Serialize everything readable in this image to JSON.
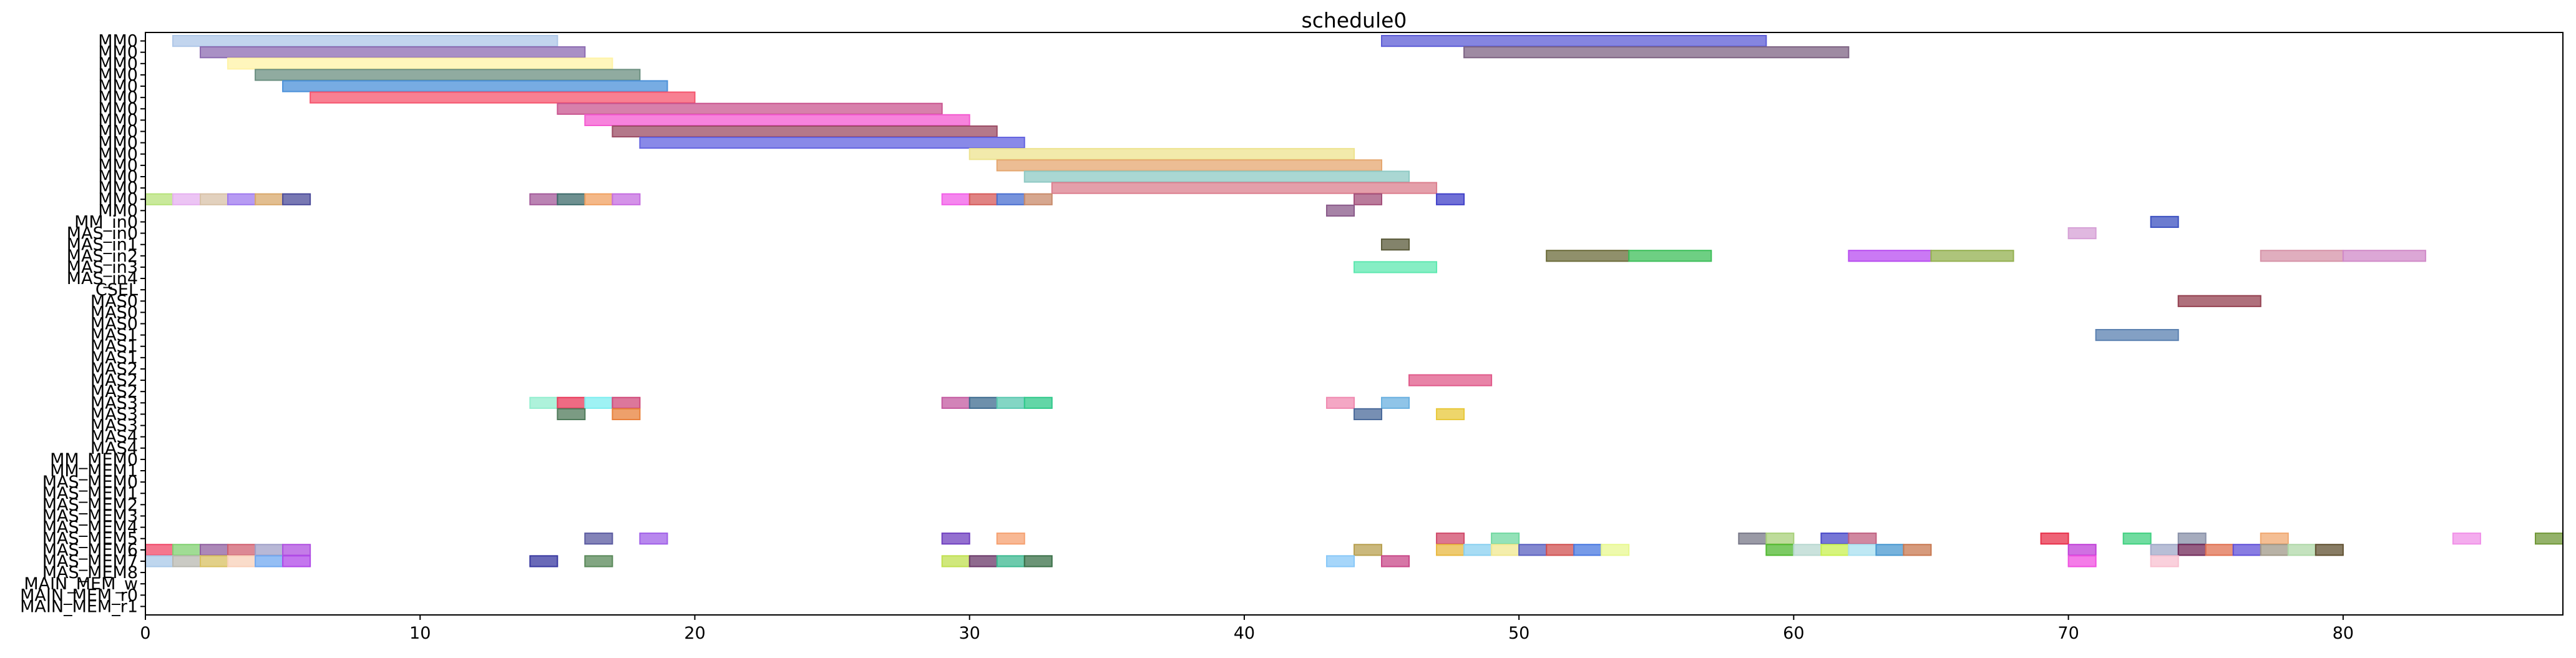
{
  "chart_data": {
    "type": "gantt",
    "title": "schedule0",
    "xlim": [
      0,
      88
    ],
    "x_ticks": [
      0,
      10,
      20,
      30,
      40,
      50,
      60,
      70,
      80
    ],
    "grid": false,
    "legend": "none",
    "rows": [
      "MM0",
      "MM0",
      "MM0",
      "MM0",
      "MM0",
      "MM0",
      "MM0",
      "MM0",
      "MM0",
      "MM0",
      "MM0",
      "MM0",
      "MM0",
      "MM0",
      "MM0",
      "MM0",
      "MM_in0",
      "MAS_in0",
      "MAS_in1",
      "MAS_in2",
      "MAS_in3",
      "MAS_in4",
      "CSEL",
      "MAS0",
      "MAS0",
      "MAS0",
      "MAS1",
      "MAS1",
      "MAS1",
      "MAS2",
      "MAS2",
      "MAS2",
      "MAS3",
      "MAS3",
      "MAS3",
      "MAS4",
      "MAS4",
      "MM_MEM0",
      "MM_MEM1",
      "MAS_MEM0",
      "MAS_MEM1",
      "MAS_MEM2",
      "MAS_MEM3",
      "MAS_MEM4",
      "MAS_MEM5",
      "MAS_MEM6",
      "MAS_MEM7",
      "MAS_MEM8",
      "MAIN_MEM_w",
      "MAIN_MEM_r0",
      "MAIN_MEM_r1"
    ],
    "tasks": [
      {
        "row": 0,
        "start": 1,
        "end": 15,
        "color": "#aec7e8"
      },
      {
        "row": 0,
        "start": 45,
        "end": 59,
        "color": "#5c5cd6"
      },
      {
        "row": 1,
        "start": 2,
        "end": 16,
        "color": "#8c6bb1"
      },
      {
        "row": 1,
        "start": 48,
        "end": 62,
        "color": "#7d6383"
      },
      {
        "row": 2,
        "start": 3,
        "end": 17,
        "color": "#fff3a6"
      },
      {
        "row": 3,
        "start": 4,
        "end": 18,
        "color": "#6b8f80"
      },
      {
        "row": 4,
        "start": 5,
        "end": 19,
        "color": "#4a90d9"
      },
      {
        "row": 5,
        "start": 6,
        "end": 20,
        "color": "#f5556e"
      },
      {
        "row": 6,
        "start": 15,
        "end": 29,
        "color": "#c9558f"
      },
      {
        "row": 7,
        "start": 16,
        "end": 30,
        "color": "#f45ad0"
      },
      {
        "row": 8,
        "start": 17,
        "end": 31,
        "color": "#9b4b63"
      },
      {
        "row": 9,
        "start": 18,
        "end": 32,
        "color": "#6262e0"
      },
      {
        "row": 10,
        "start": 30,
        "end": 44,
        "color": "#ede38f"
      },
      {
        "row": 11,
        "start": 31,
        "end": 45,
        "color": "#e5a770"
      },
      {
        "row": 12,
        "start": 32,
        "end": 46,
        "color": "#8ec9c4"
      },
      {
        "row": 13,
        "start": 33,
        "end": 47,
        "color": "#db7f8e"
      },
      {
        "row": 14,
        "start": 0,
        "end": 1,
        "color": "#b7e27a"
      },
      {
        "row": 14,
        "start": 1,
        "end": 2,
        "color": "#e6b0f0"
      },
      {
        "row": 14,
        "start": 2,
        "end": 3,
        "color": "#d8c2a8"
      },
      {
        "row": 14,
        "start": 3,
        "end": 4,
        "color": "#9f7aef"
      },
      {
        "row": 14,
        "start": 4,
        "end": 5,
        "color": "#d8a86b"
      },
      {
        "row": 14,
        "start": 5,
        "end": 6,
        "color": "#4b4b9a"
      },
      {
        "row": 14,
        "start": 14,
        "end": 15,
        "color": "#a35a9a"
      },
      {
        "row": 14,
        "start": 15,
        "end": 16,
        "color": "#3d6b6b"
      },
      {
        "row": 14,
        "start": 16,
        "end": 17,
        "color": "#f0a060"
      },
      {
        "row": 14,
        "start": 17,
        "end": 18,
        "color": "#c56de0"
      },
      {
        "row": 14,
        "start": 29,
        "end": 30,
        "color": "#f25ee8"
      },
      {
        "row": 14,
        "start": 30,
        "end": 31,
        "color": "#d65a5a"
      },
      {
        "row": 14,
        "start": 31,
        "end": 32,
        "color": "#4a6fd0"
      },
      {
        "row": 14,
        "start": 32,
        "end": 33,
        "color": "#c88a6a"
      },
      {
        "row": 14,
        "start": 44,
        "end": 45,
        "color": "#a34f7a"
      },
      {
        "row": 14,
        "start": 47,
        "end": 48,
        "color": "#4040c8"
      },
      {
        "row": 15,
        "start": 43,
        "end": 44,
        "color": "#8a5a8a"
      },
      {
        "row": 16,
        "start": 73,
        "end": 74,
        "color": "#3b50c0"
      },
      {
        "row": 17,
        "start": 70,
        "end": 71,
        "color": "#d6a0d6"
      },
      {
        "row": 18,
        "start": 45,
        "end": 46,
        "color": "#5a5a3a"
      },
      {
        "row": 19,
        "start": 51,
        "end": 54,
        "color": "#6b6b3a"
      },
      {
        "row": 19,
        "start": 54,
        "end": 57,
        "color": "#3dbf5a"
      },
      {
        "row": 19,
        "start": 62,
        "end": 65,
        "color": "#b84cf0"
      },
      {
        "row": 19,
        "start": 65,
        "end": 68,
        "color": "#93b04f"
      },
      {
        "row": 19,
        "start": 77,
        "end": 80,
        "color": "#d693a8"
      },
      {
        "row": 19,
        "start": 80,
        "end": 83,
        "color": "#d08ac8"
      },
      {
        "row": 20,
        "start": 44,
        "end": 47,
        "color": "#5de8b0"
      },
      {
        "row": 23,
        "start": 74,
        "end": 77,
        "color": "#944050"
      },
      {
        "row": 26,
        "start": 71,
        "end": 74,
        "color": "#5a80b0"
      },
      {
        "row": 30,
        "start": 46,
        "end": 49,
        "color": "#e05a8a"
      },
      {
        "row": 32,
        "start": 14,
        "end": 15,
        "color": "#93eecf"
      },
      {
        "row": 32,
        "start": 15,
        "end": 16,
        "color": "#e83a5a"
      },
      {
        "row": 32,
        "start": 16,
        "end": 17,
        "color": "#7eeef0"
      },
      {
        "row": 32,
        "start": 17,
        "end": 18,
        "color": "#d04a7a"
      },
      {
        "row": 32,
        "start": 29,
        "end": 30,
        "color": "#c35aa0"
      },
      {
        "row": 32,
        "start": 30,
        "end": 31,
        "color": "#3d6b8f"
      },
      {
        "row": 32,
        "start": 31,
        "end": 32,
        "color": "#5ac8b0"
      },
      {
        "row": 32,
        "start": 32,
        "end": 33,
        "color": "#2fc88a"
      },
      {
        "row": 32,
        "start": 43,
        "end": 44,
        "color": "#f08ab0"
      },
      {
        "row": 32,
        "start": 45,
        "end": 46,
        "color": "#6ab0e0"
      },
      {
        "row": 33,
        "start": 15,
        "end": 16,
        "color": "#4f7a5a"
      },
      {
        "row": 33,
        "start": 17,
        "end": 18,
        "color": "#e8803a"
      },
      {
        "row": 33,
        "start": 44,
        "end": 45,
        "color": "#4a6a9a"
      },
      {
        "row": 33,
        "start": 47,
        "end": 48,
        "color": "#e8c83a"
      },
      {
        "row": 44,
        "start": 16,
        "end": 17,
        "color": "#5a5aa0"
      },
      {
        "row": 44,
        "start": 18,
        "end": 19,
        "color": "#a060e8"
      },
      {
        "row": 44,
        "start": 29,
        "end": 30,
        "color": "#7040c0"
      },
      {
        "row": 44,
        "start": 31,
        "end": 32,
        "color": "#f5a070"
      },
      {
        "row": 44,
        "start": 47,
        "end": 48,
        "color": "#d04a6a"
      },
      {
        "row": 44,
        "start": 49,
        "end": 50,
        "color": "#70d8a0"
      },
      {
        "row": 44,
        "start": 58,
        "end": 59,
        "color": "#787888"
      },
      {
        "row": 44,
        "start": 59,
        "end": 60,
        "color": "#a8d07a"
      },
      {
        "row": 44,
        "start": 61,
        "end": 62,
        "color": "#4848c8"
      },
      {
        "row": 44,
        "start": 62,
        "end": 63,
        "color": "#c06080"
      },
      {
        "row": 44,
        "start": 69,
        "end": 70,
        "color": "#e8304a"
      },
      {
        "row": 44,
        "start": 72,
        "end": 73,
        "color": "#40d080"
      },
      {
        "row": 44,
        "start": 74,
        "end": 75,
        "color": "#8890a8"
      },
      {
        "row": 44,
        "start": 77,
        "end": 78,
        "color": "#f0a870"
      },
      {
        "row": 44,
        "start": 84,
        "end": 85,
        "color": "#f090e8"
      },
      {
        "row": 44,
        "start": 87,
        "end": 88,
        "color": "#709838"
      },
      {
        "row": 45,
        "start": 0,
        "end": 1,
        "color": "#f04868"
      },
      {
        "row": 45,
        "start": 1,
        "end": 2,
        "color": "#80d070"
      },
      {
        "row": 45,
        "start": 2,
        "end": 3,
        "color": "#9060a0"
      },
      {
        "row": 45,
        "start": 3,
        "end": 4,
        "color": "#d06070"
      },
      {
        "row": 45,
        "start": 4,
        "end": 5,
        "color": "#a0a0c8"
      },
      {
        "row": 45,
        "start": 5,
        "end": 6,
        "color": "#b050e0"
      },
      {
        "row": 45,
        "start": 44,
        "end": 45,
        "color": "#b8a050"
      },
      {
        "row": 45,
        "start": 47,
        "end": 48,
        "color": "#e8b840"
      },
      {
        "row": 45,
        "start": 48,
        "end": 49,
        "color": "#8ad0f0"
      },
      {
        "row": 45,
        "start": 49,
        "end": 50,
        "color": "#f0e890"
      },
      {
        "row": 45,
        "start": 50,
        "end": 51,
        "color": "#5a60c0"
      },
      {
        "row": 45,
        "start": 51,
        "end": 52,
        "color": "#d05050"
      },
      {
        "row": 45,
        "start": 52,
        "end": 53,
        "color": "#4878e0"
      },
      {
        "row": 45,
        "start": 53,
        "end": 54,
        "color": "#e8f890"
      },
      {
        "row": 45,
        "start": 59,
        "end": 60,
        "color": "#50b830"
      },
      {
        "row": 45,
        "start": 60,
        "end": 61,
        "color": "#b8d8d0"
      },
      {
        "row": 45,
        "start": 61,
        "end": 62,
        "color": "#c8f050"
      },
      {
        "row": 45,
        "start": 62,
        "end": 63,
        "color": "#a8e0f0"
      },
      {
        "row": 45,
        "start": 63,
        "end": 64,
        "color": "#4898d0"
      },
      {
        "row": 45,
        "start": 64,
        "end": 65,
        "color": "#c87850"
      },
      {
        "row": 45,
        "start": 70,
        "end": 71,
        "color": "#c040d8"
      },
      {
        "row": 45,
        "start": 73,
        "end": 74,
        "color": "#a0a8c8"
      },
      {
        "row": 45,
        "start": 74,
        "end": 75,
        "color": "#702858"
      },
      {
        "row": 45,
        "start": 75,
        "end": 76,
        "color": "#e07050"
      },
      {
        "row": 45,
        "start": 76,
        "end": 77,
        "color": "#6050d8"
      },
      {
        "row": 45,
        "start": 77,
        "end": 78,
        "color": "#a09888"
      },
      {
        "row": 45,
        "start": 78,
        "end": 79,
        "color": "#b0d8a8"
      },
      {
        "row": 45,
        "start": 79,
        "end": 80,
        "color": "#605030"
      },
      {
        "row": 46,
        "start": 0,
        "end": 1,
        "color": "#a8c8e8"
      },
      {
        "row": 46,
        "start": 1,
        "end": 2,
        "color": "#b8b8b0"
      },
      {
        "row": 46,
        "start": 2,
        "end": 3,
        "color": "#d8c060"
      },
      {
        "row": 46,
        "start": 3,
        "end": 4,
        "color": "#f8d0b8"
      },
      {
        "row": 46,
        "start": 4,
        "end": 5,
        "color": "#70a8f0"
      },
      {
        "row": 46,
        "start": 5,
        "end": 6,
        "color": "#b048e8"
      },
      {
        "row": 46,
        "start": 14,
        "end": 15,
        "color": "#3838a0"
      },
      {
        "row": 46,
        "start": 16,
        "end": 17,
        "color": "#588858"
      },
      {
        "row": 46,
        "start": 29,
        "end": 30,
        "color": "#c0e050"
      },
      {
        "row": 46,
        "start": 30,
        "end": 31,
        "color": "#6a3868"
      },
      {
        "row": 46,
        "start": 31,
        "end": 32,
        "color": "#3cb890"
      },
      {
        "row": 46,
        "start": 32,
        "end": 33,
        "color": "#3a7048"
      },
      {
        "row": 46,
        "start": 43,
        "end": 44,
        "color": "#88c8f8"
      },
      {
        "row": 46,
        "start": 45,
        "end": 46,
        "color": "#c84888"
      },
      {
        "row": 46,
        "start": 70,
        "end": 71,
        "color": "#f050e0"
      },
      {
        "row": 46,
        "start": 73,
        "end": 74,
        "color": "#f8c0d0"
      }
    ]
  }
}
